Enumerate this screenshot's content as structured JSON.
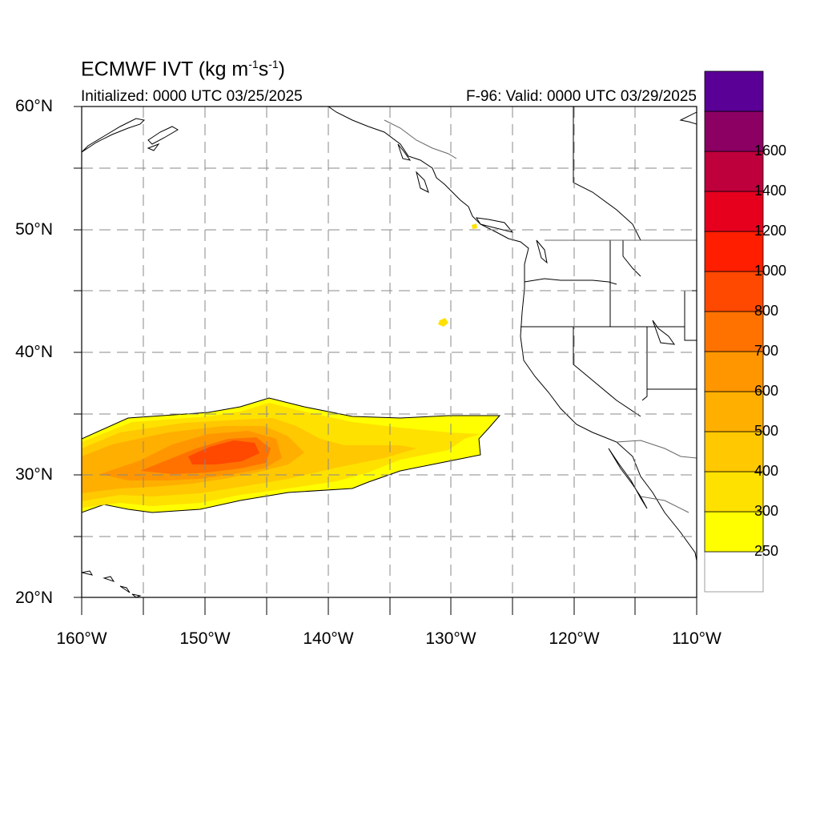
{
  "map": {
    "title": "ECMWF IVT (kg m",
    "title_sup1": "-1",
    "title_mid": "s",
    "title_sup2": "-1",
    "title_end": ")",
    "initialized": "Initialized: 0000 UTC 03/25/2025",
    "valid": "F-96: Valid: 0000 UTC 03/29/2025",
    "lat_labels": [
      "60°N",
      "50°N",
      "40°N",
      "30°N",
      "20°N"
    ],
    "lon_labels": [
      "160°W",
      "150°W",
      "140°W",
      "130°W",
      "120°W",
      "110°W"
    ],
    "extent": {
      "lon": [
        -160,
        -110
      ],
      "lat": [
        20,
        60
      ]
    },
    "grid": "dashed every 5°"
  },
  "colorbar": {
    "labels": [
      "250",
      "300",
      "400",
      "500",
      "600",
      "700",
      "800",
      "1000",
      "1200",
      "1400",
      "1600"
    ],
    "colors": [
      "#ffffff",
      "#ffff00",
      "#ffe100",
      "#ffc800",
      "#ffaf00",
      "#ff9600",
      "#ff7200",
      "#ff4800",
      "#ff1e00",
      "#e6001e",
      "#be003c",
      "#8c0064",
      "#5a0096"
    ]
  },
  "features": {
    "ivt_plume": "atmospheric river centered near 31°N 148°W, extending east to ~126°W",
    "max_ivt_range": "700-800"
  }
}
